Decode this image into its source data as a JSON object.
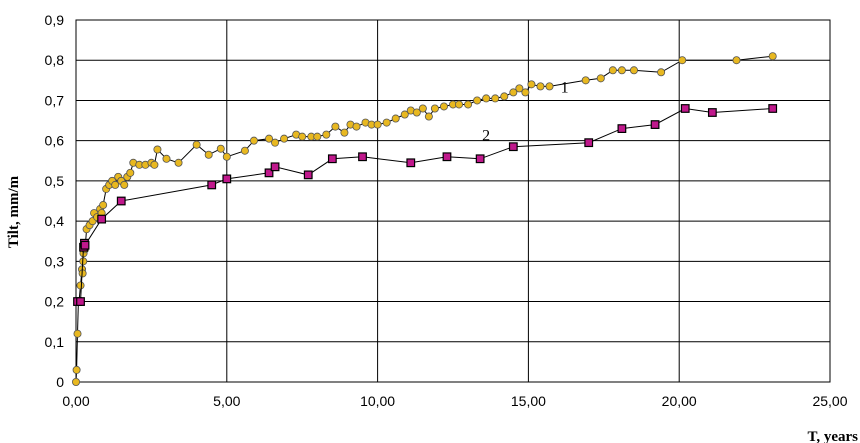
{
  "chart_data": {
    "type": "line",
    "xlabel": "T, years",
    "ylabel": "Tilt, mm/m",
    "xlim": [
      0,
      25
    ],
    "ylim": [
      0,
      0.9
    ],
    "x_ticks": [
      "0,00",
      "5,00",
      "10,00",
      "15,00",
      "20,00",
      "25,00"
    ],
    "y_ticks": [
      "0",
      "0,1",
      "0,2",
      "0,3",
      "0,4",
      "0,5",
      "0,6",
      "0,7",
      "0,8",
      "0,9"
    ],
    "grid": true,
    "series": [
      {
        "name": "1",
        "marker": "circle",
        "color": "#e8b820",
        "points": [
          [
            0.0,
            0.0
          ],
          [
            0.02,
            0.03
          ],
          [
            0.05,
            0.12
          ],
          [
            0.08,
            0.2
          ],
          [
            0.1,
            0.2
          ],
          [
            0.15,
            0.24
          ],
          [
            0.2,
            0.28
          ],
          [
            0.22,
            0.27
          ],
          [
            0.24,
            0.3
          ],
          [
            0.25,
            0.32
          ],
          [
            0.27,
            0.34
          ],
          [
            0.3,
            0.33
          ],
          [
            0.35,
            0.38
          ],
          [
            0.45,
            0.39
          ],
          [
            0.55,
            0.4
          ],
          [
            0.6,
            0.42
          ],
          [
            0.7,
            0.41
          ],
          [
            0.8,
            0.43
          ],
          [
            0.85,
            0.42
          ],
          [
            0.9,
            0.44
          ],
          [
            1.0,
            0.48
          ],
          [
            1.1,
            0.49
          ],
          [
            1.2,
            0.5
          ],
          [
            1.3,
            0.49
          ],
          [
            1.4,
            0.51
          ],
          [
            1.5,
            0.5
          ],
          [
            1.6,
            0.49
          ],
          [
            1.7,
            0.51
          ],
          [
            1.8,
            0.52
          ],
          [
            1.9,
            0.545
          ],
          [
            2.1,
            0.54
          ],
          [
            2.3,
            0.54
          ],
          [
            2.5,
            0.545
          ],
          [
            2.6,
            0.54
          ],
          [
            2.7,
            0.578
          ],
          [
            3.0,
            0.555
          ],
          [
            3.4,
            0.545
          ],
          [
            4.0,
            0.59
          ],
          [
            4.4,
            0.565
          ],
          [
            4.8,
            0.58
          ],
          [
            5.0,
            0.56
          ],
          [
            5.6,
            0.575
          ],
          [
            5.9,
            0.6
          ],
          [
            6.4,
            0.605
          ],
          [
            6.6,
            0.595
          ],
          [
            6.9,
            0.605
          ],
          [
            7.3,
            0.615
          ],
          [
            7.5,
            0.61
          ],
          [
            7.8,
            0.61
          ],
          [
            8.0,
            0.61
          ],
          [
            8.3,
            0.615
          ],
          [
            8.6,
            0.635
          ],
          [
            8.9,
            0.62
          ],
          [
            9.1,
            0.64
          ],
          [
            9.3,
            0.635
          ],
          [
            9.6,
            0.645
          ],
          [
            9.8,
            0.64
          ],
          [
            10.0,
            0.64
          ],
          [
            10.3,
            0.645
          ],
          [
            10.6,
            0.655
          ],
          [
            10.9,
            0.665
          ],
          [
            11.1,
            0.675
          ],
          [
            11.3,
            0.67
          ],
          [
            11.5,
            0.68
          ],
          [
            11.7,
            0.66
          ],
          [
            11.9,
            0.68
          ],
          [
            12.2,
            0.685
          ],
          [
            12.5,
            0.69
          ],
          [
            12.7,
            0.69
          ],
          [
            13.0,
            0.69
          ],
          [
            13.3,
            0.7
          ],
          [
            13.6,
            0.705
          ],
          [
            13.9,
            0.705
          ],
          [
            14.2,
            0.71
          ],
          [
            14.5,
            0.72
          ],
          [
            14.7,
            0.73
          ],
          [
            14.9,
            0.72
          ],
          [
            15.1,
            0.74
          ],
          [
            15.4,
            0.735
          ],
          [
            15.7,
            0.735
          ],
          [
            16.9,
            0.75
          ],
          [
            17.4,
            0.755
          ],
          [
            17.8,
            0.775
          ],
          [
            18.1,
            0.775
          ],
          [
            18.5,
            0.775
          ],
          [
            19.4,
            0.77
          ],
          [
            20.1,
            0.8
          ],
          [
            21.9,
            0.8
          ],
          [
            23.1,
            0.81
          ]
        ]
      },
      {
        "name": "2",
        "marker": "square",
        "color": "#c0188c",
        "points": [
          [
            0.05,
            0.2
          ],
          [
            0.15,
            0.2
          ],
          [
            0.25,
            0.335
          ],
          [
            0.28,
            0.345
          ],
          [
            0.3,
            0.34
          ],
          [
            0.85,
            0.405
          ],
          [
            1.5,
            0.45
          ],
          [
            4.5,
            0.49
          ],
          [
            5.0,
            0.505
          ],
          [
            6.4,
            0.52
          ],
          [
            6.6,
            0.535
          ],
          [
            7.7,
            0.515
          ],
          [
            8.5,
            0.555
          ],
          [
            9.5,
            0.56
          ],
          [
            11.1,
            0.545
          ],
          [
            12.3,
            0.56
          ],
          [
            13.4,
            0.555
          ],
          [
            14.5,
            0.585
          ],
          [
            17.0,
            0.595
          ],
          [
            18.1,
            0.63
          ],
          [
            19.2,
            0.64
          ],
          [
            20.2,
            0.68
          ],
          [
            21.1,
            0.67
          ],
          [
            23.1,
            0.68
          ]
        ]
      }
    ],
    "annotations": [
      {
        "text": "1",
        "x": 16.2,
        "y": 0.72
      },
      {
        "text": "2",
        "x": 13.6,
        "y": 0.6
      }
    ]
  }
}
